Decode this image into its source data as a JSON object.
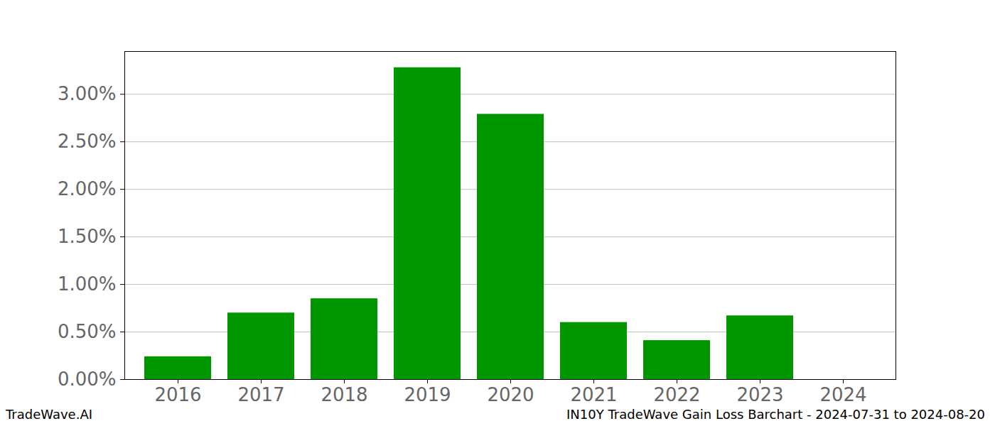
{
  "chart_data": {
    "type": "bar",
    "categories": [
      "2016",
      "2017",
      "2018",
      "2019",
      "2020",
      "2021",
      "2022",
      "2023",
      "2024"
    ],
    "values": [
      0.24,
      0.7,
      0.85,
      3.28,
      2.79,
      0.6,
      0.41,
      0.67,
      0
    ],
    "color": "#009600",
    "ylim": [
      0,
      3.45
    ],
    "yticks": [
      {
        "value": 0,
        "label": "0.00%"
      },
      {
        "value": 0.5,
        "label": "0.50%"
      },
      {
        "value": 1,
        "label": "1.00%"
      },
      {
        "value": 1.5,
        "label": "1.50%"
      },
      {
        "value": 2,
        "label": "2.00%"
      },
      {
        "value": 2.5,
        "label": "2.50%"
      },
      {
        "value": 3,
        "label": "3.00%"
      }
    ],
    "grid": true,
    "annotations": [
      "TradeWave.AI",
      "IN10Y TradeWave Gain Loss Barchart - 2024-07-31 to 2024-08-20"
    ]
  }
}
